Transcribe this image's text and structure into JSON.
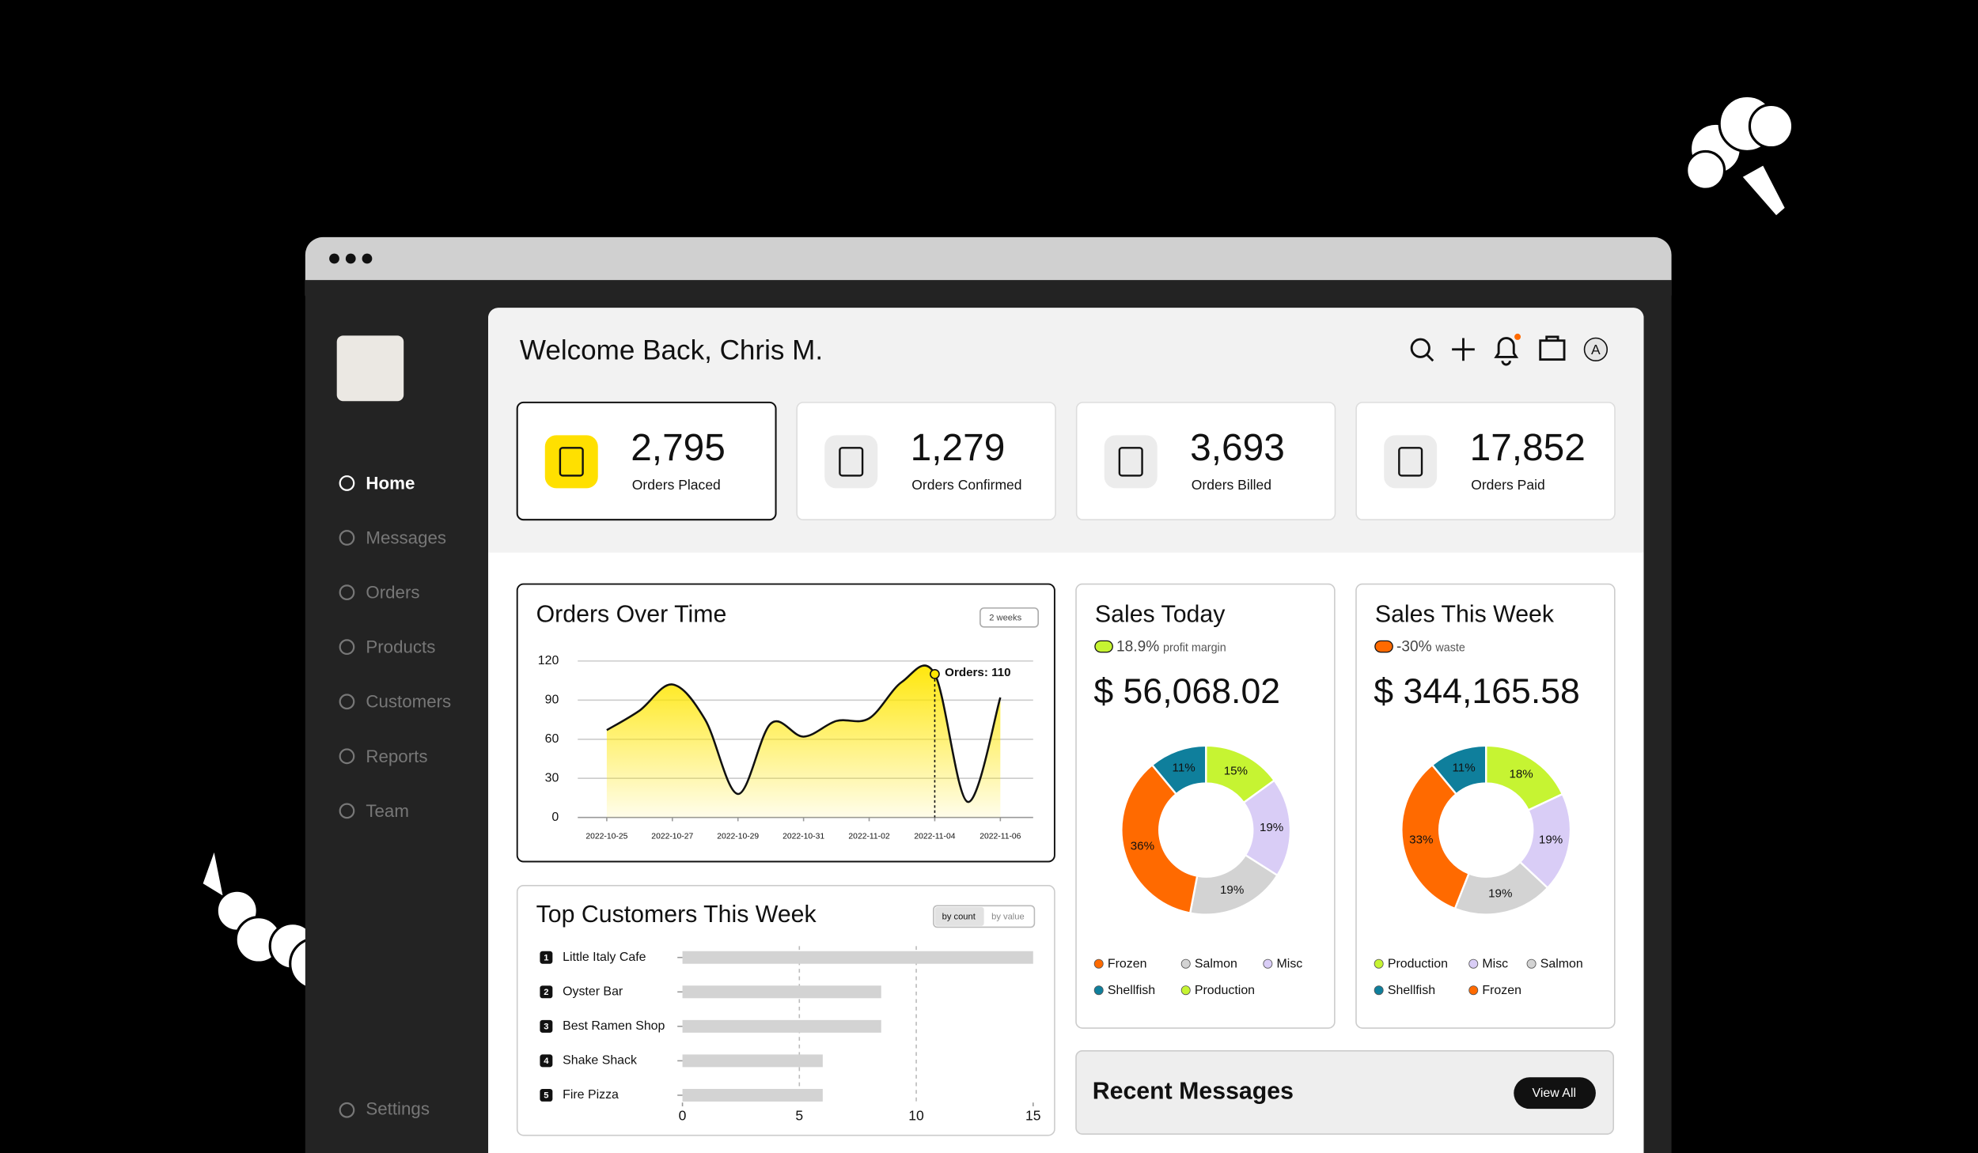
{
  "window": {
    "nav": [
      "Home",
      "Messages",
      "Orders",
      "Products",
      "Customers",
      "Reports",
      "Team"
    ],
    "settings": "Settings",
    "avatar": "A"
  },
  "header": {
    "title": "Welcome Back, Chris M."
  },
  "stats": [
    {
      "value": "2,795",
      "label": "Orders Placed"
    },
    {
      "value": "1,279",
      "label": "Orders Confirmed"
    },
    {
      "value": "3,693",
      "label": "Orders Billed"
    },
    {
      "value": "17,852",
      "label": "Orders Paid"
    }
  ],
  "chart_data": [
    {
      "type": "line",
      "title": "Orders Over Time",
      "dropdown": "2 weeks",
      "x": [
        "2022-10-25",
        "2022-10-26",
        "2022-10-27",
        "2022-10-28",
        "2022-10-29",
        "2022-10-30",
        "2022-10-31",
        "2022-11-01",
        "2022-11-02",
        "2022-11-03",
        "2022-11-04",
        "2022-11-05",
        "2022-11-06"
      ],
      "values": [
        67,
        82,
        102,
        75,
        18,
        72,
        62,
        74,
        76,
        104,
        110,
        12,
        92
      ],
      "xticks": [
        "2022-10-25",
        "2022-10-27",
        "2022-10-29",
        "2022-10-31",
        "2022-11-02",
        "2022-11-04",
        "2022-11-06"
      ],
      "ylim": [
        0,
        120
      ],
      "yticks": [
        0,
        30,
        60,
        90,
        120
      ],
      "grid": true,
      "color": "#111111",
      "fill": "#ffe600",
      "annotation": "Orders: 110"
    },
    {
      "type": "barh",
      "title": "Top Customers This Week",
      "toggles": [
        "by count",
        "by value"
      ],
      "ranks": [
        1,
        2,
        3,
        4,
        5
      ],
      "categories": [
        "Little Italy Cafe",
        "Oyster Bar",
        "Best Ramen Shop",
        "Shake Shack",
        "Fire Pizza"
      ],
      "values": [
        15,
        8.5,
        8.5,
        6,
        6
      ],
      "xlim": [
        0,
        15
      ],
      "xticks": [
        0,
        5,
        10,
        15
      ],
      "grid": true,
      "color": "#d3d3d3"
    },
    {
      "type": "donut",
      "title": "Sales Today",
      "change": "18.9%",
      "change_label": "profit margin",
      "badge_color": "#c6f432",
      "total": "$ 56,068.02",
      "categories": [
        "Production",
        "Misc",
        "Salmon",
        "Frozen",
        "Shellfish"
      ],
      "values": [
        15,
        19,
        19,
        36,
        11
      ],
      "value_labels": [
        "15%",
        "19%",
        "19%",
        "36%",
        "11%"
      ],
      "colors": [
        "#c6f432",
        "#d9cdf6",
        "#d3d3d3",
        "#ff6a00",
        "#0f7f9c"
      ]
    },
    {
      "type": "donut",
      "title": "Sales This Week",
      "change": "-30%",
      "change_label": "waste",
      "badge_color": "#ff6a00",
      "total": "$ 344,165.58",
      "categories": [
        "Production",
        "Misc",
        "Salmon",
        "Frozen",
        "Shellfish"
      ],
      "values": [
        18,
        19,
        19,
        33,
        11
      ],
      "value_labels": [
        "18%",
        "19%",
        "19%",
        "33%",
        "11%"
      ],
      "colors": [
        "#c6f432",
        "#d9cdf6",
        "#d3d3d3",
        "#ff6a00",
        "#0f7f9c"
      ]
    }
  ],
  "messages": {
    "title": "Recent Messages",
    "button": "View All"
  }
}
